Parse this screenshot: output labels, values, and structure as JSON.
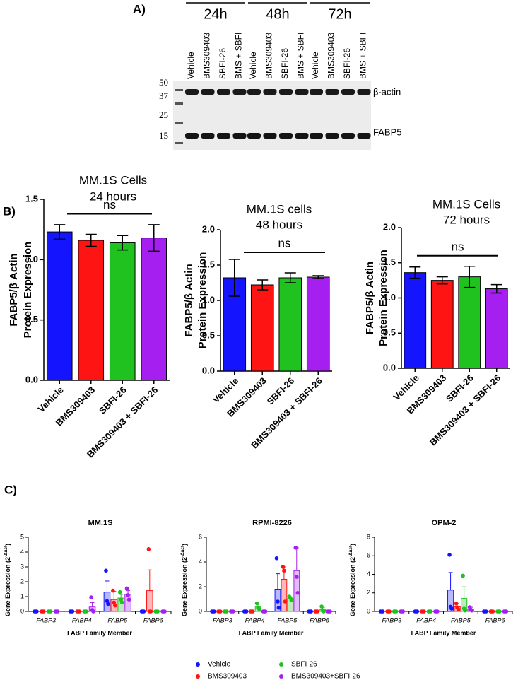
{
  "panel_labels": [
    "A)",
    "B)",
    "C)"
  ],
  "blot": {
    "timepoints": [
      "24h",
      "48h",
      "72h"
    ],
    "lanes": [
      "Vehicle",
      "BMS309403",
      "SBFI-26",
      "BMS + SBFI",
      "Vehicle",
      "BMS309403",
      "SBFI-26",
      "BMS + SBFI",
      "Vehicle",
      "BMS309403",
      "SBFI-26",
      "BMS + SBFI"
    ],
    "markers": [
      50,
      37,
      25,
      15
    ],
    "bands": [
      "β-actin",
      "FABP5"
    ]
  },
  "chart_data": [
    {
      "type": "bar",
      "title": "MM.1S Cells",
      "subtitle": "24 hours",
      "ylabel": [
        "FABP5/β Actin",
        "Protein Expression"
      ],
      "categories": [
        "Vehicle",
        "BMS309403",
        "SBFI-26",
        "BMS309403 + SBFI-26"
      ],
      "values": [
        1.23,
        1.16,
        1.14,
        1.18
      ],
      "errors": [
        0.06,
        0.05,
        0.06,
        0.11
      ],
      "colors": [
        "#1414ff",
        "#ff1414",
        "#1fc21f",
        "#a41ff0"
      ],
      "ylim": [
        0,
        1.5
      ],
      "yticks": [
        {
          "value": 0,
          "label": "0.0"
        },
        {
          "value": 0.5,
          "label": "0.5"
        },
        {
          "value": 1,
          "label": "1.0"
        },
        {
          "value": 1.5,
          "label": "1.5"
        }
      ],
      "annotation": "ns"
    },
    {
      "type": "bar",
      "title": "MM.1S cells",
      "subtitle": "48 hours",
      "ylabel": [
        "FABP5/β Actin",
        "Protein Expression"
      ],
      "categories": [
        "Vehicle",
        "BMS309403",
        "SBFI-26",
        "BMS309403 + SBFI-26"
      ],
      "values": [
        1.32,
        1.22,
        1.32,
        1.33
      ],
      "errors": [
        0.26,
        0.07,
        0.07,
        0.02
      ],
      "colors": [
        "#1414ff",
        "#ff1414",
        "#1fc21f",
        "#a41ff0"
      ],
      "ylim": [
        0,
        2
      ],
      "yticks": [
        {
          "value": 0,
          "label": "0.0"
        },
        {
          "value": 0.5,
          "label": "0.5"
        },
        {
          "value": 1,
          "label": "1.0"
        },
        {
          "value": 1.5,
          "label": "1.5"
        },
        {
          "value": 2,
          "label": "2.0"
        }
      ],
      "annotation": "ns"
    },
    {
      "type": "bar",
      "title": "MM.1S Cells",
      "subtitle": "72 hours",
      "ylabel": [
        "FABP5/β Actin",
        "Protein Expression"
      ],
      "categories": [
        "Vehicle",
        "BMS309403",
        "SBFI-26",
        "BMS309403 + SBFI-26"
      ],
      "values": [
        1.36,
        1.25,
        1.3,
        1.13
      ],
      "errors": [
        0.08,
        0.05,
        0.15,
        0.06
      ],
      "colors": [
        "#1414ff",
        "#ff1414",
        "#1fc21f",
        "#a41ff0"
      ],
      "ylim": [
        0,
        2
      ],
      "yticks": [
        {
          "value": 0,
          "label": "0.0"
        },
        {
          "value": 0.5,
          "label": "0.5"
        },
        {
          "value": 1,
          "label": "1.0"
        },
        {
          "value": 1.5,
          "label": "1.5"
        },
        {
          "value": 2,
          "label": "2.0"
        }
      ],
      "annotation": "ns"
    },
    {
      "type": "dotbar",
      "title": "MM.1S",
      "ylabel": [
        "Gene Expression (2",
        "-ΔΔct",
        ")"
      ],
      "xlabel": "FABP Family Member",
      "categories": [
        "FABP3",
        "FABP4",
        "FABP5",
        "FABP6"
      ],
      "ylim": [
        0,
        5
      ],
      "yticks": [
        0,
        1,
        2,
        3,
        4,
        5
      ],
      "series": [
        {
          "name": "Vehicle",
          "color": "#1414ff",
          "values": [
            0,
            0,
            1.3,
            0
          ],
          "errors": [
            0,
            0,
            0.75,
            0
          ],
          "points": [
            [
              0,
              0,
              0
            ],
            [
              0,
              0,
              0
            ],
            [
              2.75,
              0.7,
              0.5
            ],
            [
              0,
              0,
              0
            ]
          ]
        },
        {
          "name": "BMS309403",
          "color": "#ff1414",
          "values": [
            0,
            0,
            0.8,
            1.4
          ],
          "errors": [
            0,
            0,
            0.55,
            1.4
          ],
          "points": [
            [
              0,
              0,
              0
            ],
            [
              0,
              0,
              0
            ],
            [
              1.4,
              0.6,
              0.4
            ],
            [
              4.2,
              0,
              0
            ]
          ]
        },
        {
          "name": "SBFI-26",
          "color": "#1fc21f",
          "values": [
            0,
            0,
            0.9,
            0
          ],
          "errors": [
            0,
            0,
            0.25,
            0
          ],
          "points": [
            [
              0,
              0,
              0
            ],
            [
              0,
              0,
              0
            ],
            [
              1.3,
              0.8,
              0.6
            ],
            [
              0,
              0,
              0
            ]
          ]
        },
        {
          "name": "BMS309403+SBFI-26",
          "color": "#a41ff0",
          "values": [
            0,
            0.3,
            1.15,
            0
          ],
          "errors": [
            0,
            0.3,
            0.25,
            0
          ],
          "points": [
            [
              0,
              0,
              0
            ],
            [
              0.95,
              0.1,
              0
            ],
            [
              1.55,
              1.1,
              0.8
            ],
            [
              0,
              0,
              0
            ]
          ]
        }
      ]
    },
    {
      "type": "dotbar",
      "title": "RPMI-8226",
      "ylabel": [
        "Gene Expression (2",
        "-ΔΔct",
        ")"
      ],
      "xlabel": "FABP Family Member",
      "categories": [
        "FABP3",
        "FABP4",
        "FABP5",
        "FABP6"
      ],
      "ylim": [
        0,
        6
      ],
      "yticks": [
        0,
        2,
        4,
        6
      ],
      "series": [
        {
          "name": "Vehicle",
          "color": "#1414ff",
          "values": [
            0,
            0,
            1.8,
            0
          ],
          "errors": [
            0,
            0,
            1.25,
            0
          ],
          "points": [
            [
              0,
              0,
              0
            ],
            [
              0,
              0,
              0
            ],
            [
              4.3,
              0.8,
              0.3
            ],
            [
              0,
              0,
              0
            ]
          ]
        },
        {
          "name": "BMS309403",
          "color": "#ff1414",
          "values": [
            0,
            0,
            2.6,
            0
          ],
          "errors": [
            0,
            0,
            1,
            0
          ],
          "points": [
            [
              0,
              0,
              0
            ],
            [
              0,
              0,
              0
            ],
            [
              3.6,
              3.3,
              0.8
            ],
            [
              0,
              0,
              0
            ]
          ]
        },
        {
          "name": "SBFI-26",
          "color": "#1fc21f",
          "values": [
            0,
            0.4,
            1.05,
            0.15
          ],
          "errors": [
            0,
            0.2,
            0.1,
            0.15
          ],
          "points": [
            [
              0,
              0,
              0
            ],
            [
              0.65,
              0.3,
              0.2
            ],
            [
              1.2,
              1.1,
              0.9
            ],
            [
              0.4,
              0.05,
              0
            ]
          ]
        },
        {
          "name": "BMS309403+SBFI-26",
          "color": "#a41ff0",
          "values": [
            0,
            0,
            3.3,
            0
          ],
          "errors": [
            0,
            0,
            1.85,
            0
          ],
          "points": [
            [
              0,
              0,
              0
            ],
            [
              0,
              0,
              0
            ],
            [
              5.15,
              2.8,
              1.5
            ],
            [
              0,
              0,
              0
            ]
          ]
        }
      ]
    },
    {
      "type": "dotbar",
      "title": "OPM-2",
      "ylabel": [
        "Gene Expression (2",
        "-ΔΔct",
        ")"
      ],
      "xlabel": "FABP Family Member",
      "categories": [
        "FABP3",
        "FABP4",
        "FABP5",
        "FABP6"
      ],
      "ylim": [
        0,
        8
      ],
      "yticks": [
        0,
        2,
        4,
        6,
        8
      ],
      "series": [
        {
          "name": "Vehicle",
          "color": "#1414ff",
          "values": [
            0,
            0,
            2.3,
            0
          ],
          "errors": [
            0,
            0,
            1.9,
            0
          ],
          "points": [
            [
              0,
              0,
              0
            ],
            [
              0,
              0,
              0
            ],
            [
              6.1,
              0.5,
              0.3
            ],
            [
              0,
              0,
              0
            ]
          ]
        },
        {
          "name": "BMS309403",
          "color": "#ff1414",
          "values": [
            0,
            0,
            0.5,
            0
          ],
          "errors": [
            0,
            0,
            0.35,
            0
          ],
          "points": [
            [
              0,
              0,
              0
            ],
            [
              0,
              0,
              0
            ],
            [
              0.85,
              0.4,
              0.2
            ],
            [
              0,
              0,
              0
            ]
          ]
        },
        {
          "name": "SBFI-26",
          "color": "#1fc21f",
          "values": [
            0,
            0,
            1.4,
            0
          ],
          "errors": [
            0,
            0,
            1.25,
            0
          ],
          "points": [
            [
              0,
              0,
              0
            ],
            [
              0,
              0,
              0
            ],
            [
              3.85,
              0.3,
              0.1
            ],
            [
              0,
              0,
              0
            ]
          ]
        },
        {
          "name": "BMS309403+SBFI-26",
          "color": "#a41ff0",
          "values": [
            0,
            0,
            0.25,
            0
          ],
          "errors": [
            0,
            0,
            0.2,
            0
          ],
          "points": [
            [
              0,
              0,
              0
            ],
            [
              0,
              0,
              0
            ],
            [
              0.45,
              0.2,
              0.1
            ],
            [
              0,
              0,
              0
            ]
          ]
        }
      ]
    }
  ]
}
